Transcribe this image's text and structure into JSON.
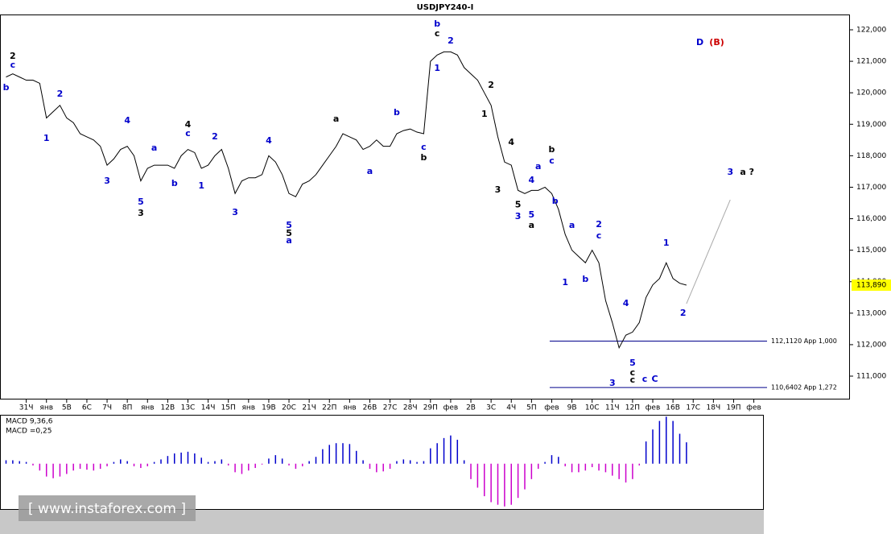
{
  "chart_data": [
    {
      "type": "line",
      "title": "USDJPY240-I",
      "color": "#000000",
      "categories": [
        null,
        null,
        null,
        "31Ч",
        null,
        null,
        "янв",
        null,
        null,
        "5В",
        null,
        null,
        "6С",
        null,
        null,
        "7Ч",
        null,
        null,
        "8П",
        null,
        null,
        "янв",
        null,
        null,
        "12В",
        null,
        null,
        "13С",
        null,
        null,
        "14Ч",
        null,
        null,
        "15П",
        null,
        null,
        "янв",
        null,
        null,
        "19В",
        null,
        null,
        "20С",
        null,
        null,
        "21Ч",
        null,
        null,
        "22П",
        null,
        null,
        "янв",
        null,
        null,
        "26В",
        null,
        null,
        "27С",
        null,
        null,
        "28Ч",
        null,
        null,
        "29П",
        null,
        null,
        "фев",
        null,
        null,
        "2В",
        null,
        null,
        "3С",
        null,
        null,
        "4Ч",
        null,
        null,
        "5П",
        null,
        null,
        "фев",
        null,
        null,
        "9В",
        null,
        null,
        "10С",
        null,
        null,
        "11Ч",
        null,
        null,
        "12П",
        null,
        null,
        "фев",
        null,
        null,
        "16В",
        null,
        null,
        "17С",
        null,
        null,
        "18Ч",
        null,
        null,
        "19П",
        null,
        null,
        "фев",
        null,
        null
      ],
      "values": [
        120.5,
        120.6,
        120.5,
        120.4,
        120.4,
        120.3,
        119.2,
        119.4,
        119.6,
        119.2,
        119.05,
        118.7,
        118.6,
        118.5,
        118.3,
        117.7,
        117.9,
        118.2,
        118.3,
        118.0,
        117.2,
        117.6,
        117.7,
        117.7,
        117.7,
        117.6,
        118.0,
        118.2,
        118.1,
        117.6,
        117.7,
        118.0,
        118.2,
        117.6,
        116.8,
        117.2,
        117.3,
        117.3,
        117.4,
        118.0,
        117.8,
        117.4,
        116.8,
        116.7,
        117.1,
        117.2,
        117.4,
        117.7,
        118.0,
        118.3,
        118.7,
        118.6,
        118.5,
        118.2,
        118.3,
        118.5,
        118.3,
        118.3,
        118.7,
        118.8,
        118.85,
        118.75,
        118.7,
        121.0,
        121.2,
        121.3,
        121.3,
        121.2,
        120.8,
        120.6,
        120.4,
        120.0,
        119.6,
        118.6,
        117.8,
        117.7,
        116.9,
        116.8,
        116.9,
        116.9,
        117.0,
        116.8,
        116.3,
        115.5,
        115.0,
        114.8,
        114.6,
        115.0,
        114.6,
        113.4,
        112.7,
        111.9,
        112.3,
        112.4,
        112.7,
        113.5,
        113.9,
        114.1,
        114.6,
        114.1,
        113.95,
        113.89,
        null,
        null,
        null,
        null,
        null,
        null,
        null,
        null,
        null,
        null,
        null,
        null
      ],
      "ylim": [
        110.284,
        122.486
      ],
      "yticks": [
        {
          "value": 111,
          "label": "111,000"
        },
        {
          "value": 112,
          "label": "112,000"
        },
        {
          "value": 113,
          "label": "113,000"
        },
        {
          "value": 114,
          "label": "114,000"
        },
        {
          "value": 115,
          "label": "115,000"
        },
        {
          "value": 116,
          "label": "116,000"
        },
        {
          "value": 117,
          "label": "117,000"
        },
        {
          "value": 118,
          "label": "118,000"
        },
        {
          "value": 119,
          "label": "119,000"
        },
        {
          "value": 120,
          "label": "120,000"
        },
        {
          "value": 121,
          "label": "121,000"
        },
        {
          "value": 122,
          "label": "122,000"
        }
      ],
      "last_price": {
        "value": 113.89,
        "label": "113,890"
      },
      "levels": [
        {
          "value": 112.112,
          "label": "112,1120 App 1,000"
        },
        {
          "value": 110.6402,
          "label": "110,6402 App 1,272"
        }
      ],
      "projection": {
        "x": [
          101,
          107.5
        ],
        "values": [
          113.3,
          116.6
        ]
      },
      "annotations": [
        {
          "text": "b",
          "x": 0,
          "y": 120.16,
          "color": "#0000cc"
        },
        {
          "text": "2",
          "x": 1,
          "y": 121.16,
          "color": "#000000"
        },
        {
          "text": "c",
          "x": 1,
          "y": 120.87,
          "color": "#0000cc"
        },
        {
          "text": "1",
          "x": 6,
          "y": 118.55,
          "color": "#0000cc"
        },
        {
          "text": "2",
          "x": 8,
          "y": 119.95,
          "color": "#0000cc"
        },
        {
          "text": "3",
          "x": 15,
          "y": 117.19,
          "color": "#0000cc"
        },
        {
          "text": "4",
          "x": 18,
          "y": 119.11,
          "color": "#0000cc"
        },
        {
          "text": "a",
          "x": 22,
          "y": 118.24,
          "color": "#0000cc"
        },
        {
          "text": "5",
          "x": 20,
          "y": 116.53,
          "color": "#0000cc"
        },
        {
          "text": "3",
          "x": 20,
          "y": 116.17,
          "color": "#000000"
        },
        {
          "text": "b",
          "x": 25,
          "y": 117.11,
          "color": "#0000cc"
        },
        {
          "text": "4",
          "x": 27,
          "y": 118.98,
          "color": "#000000"
        },
        {
          "text": "c",
          "x": 27,
          "y": 118.7,
          "color": "#0000cc"
        },
        {
          "text": "1",
          "x": 29,
          "y": 117.04,
          "color": "#0000cc"
        },
        {
          "text": "2",
          "x": 31,
          "y": 118.6,
          "color": "#0000cc"
        },
        {
          "text": "3",
          "x": 34,
          "y": 116.19,
          "color": "#0000cc"
        },
        {
          "text": "4",
          "x": 39,
          "y": 118.47,
          "color": "#0000cc"
        },
        {
          "text": "5",
          "x": 42,
          "y": 115.79,
          "color": "#0000cc"
        },
        {
          "text": "5",
          "x": 42,
          "y": 115.53,
          "color": "#000000"
        },
        {
          "text": "a",
          "x": 42,
          "y": 115.3,
          "color": "#0000cc"
        },
        {
          "text": "a",
          "x": 49,
          "y": 119.16,
          "color": "#000000"
        },
        {
          "text": "a",
          "x": 54,
          "y": 117.5,
          "color": "#0000cc"
        },
        {
          "text": "b",
          "x": 58,
          "y": 119.36,
          "color": "#0000cc"
        },
        {
          "text": "c",
          "x": 62,
          "y": 118.27,
          "color": "#0000cc"
        },
        {
          "text": "b",
          "x": 62,
          "y": 117.93,
          "color": "#000000"
        },
        {
          "text": "b",
          "x": 64,
          "y": 122.18,
          "color": "#0000cc"
        },
        {
          "text": "c",
          "x": 64,
          "y": 121.87,
          "color": "#000000"
        },
        {
          "text": "2",
          "x": 66,
          "y": 121.64,
          "color": "#0000cc"
        },
        {
          "text": "1",
          "x": 64,
          "y": 120.77,
          "color": "#0000cc"
        },
        {
          "text": "2",
          "x": 72,
          "y": 120.24,
          "color": "#000000"
        },
        {
          "text": "1",
          "x": 71,
          "y": 119.31,
          "color": "#000000"
        },
        {
          "text": "4",
          "x": 75,
          "y": 118.42,
          "color": "#000000"
        },
        {
          "text": "3",
          "x": 73,
          "y": 116.91,
          "color": "#000000"
        },
        {
          "text": "4",
          "x": 78,
          "y": 117.22,
          "color": "#0000cc"
        },
        {
          "text": "a",
          "x": 79,
          "y": 117.65,
          "color": "#0000cc"
        },
        {
          "text": "5",
          "x": 76,
          "y": 116.43,
          "color": "#000000"
        },
        {
          "text": "3",
          "x": 76,
          "y": 116.07,
          "color": "#0000cc"
        },
        {
          "text": "5",
          "x": 78,
          "y": 116.12,
          "color": "#0000cc"
        },
        {
          "text": "a",
          "x": 78,
          "y": 115.79,
          "color": "#000000"
        },
        {
          "text": "b",
          "x": 81,
          "y": 118.19,
          "color": "#000000"
        },
        {
          "text": "c",
          "x": 81,
          "y": 117.83,
          "color": "#0000cc"
        },
        {
          "text": "b",
          "x": 81.5,
          "y": 116.55,
          "color": "#0000cc"
        },
        {
          "text": "a",
          "x": 84,
          "y": 115.79,
          "color": "#0000cc"
        },
        {
          "text": "2",
          "x": 88,
          "y": 115.81,
          "color": "#0000cc"
        },
        {
          "text": "c",
          "x": 88,
          "y": 115.45,
          "color": "#0000cc"
        },
        {
          "text": "1",
          "x": 83,
          "y": 113.97,
          "color": "#0000cc"
        },
        {
          "text": "b",
          "x": 86,
          "y": 114.07,
          "color": "#0000cc"
        },
        {
          "text": "4",
          "x": 92,
          "y": 113.3,
          "color": "#0000cc"
        },
        {
          "text": "5",
          "x": 93,
          "y": 111.41,
          "color": "#0000cc"
        },
        {
          "text": "c",
          "x": 93,
          "y": 111.1,
          "color": "#000000"
        },
        {
          "text": "c",
          "x": 93,
          "y": 110.87,
          "color": "#000000"
        },
        {
          "text": "3",
          "x": 90,
          "y": 110.77,
          "color": "#0000cc"
        },
        {
          "text": "c",
          "x": 94.8,
          "y": 110.9,
          "color": "#0000cc"
        },
        {
          "text": "C",
          "x": 96.3,
          "y": 110.9,
          "color": "#0000cc"
        },
        {
          "text": "1",
          "x": 98,
          "y": 115.22,
          "color": "#0000cc"
        },
        {
          "text": "2",
          "x": 100.5,
          "y": 113.0,
          "color": "#0000cc"
        },
        {
          "text": "3",
          "x": 107.5,
          "y": 117.47,
          "color": "#0000cc"
        },
        {
          "text": "a ?",
          "x": 110,
          "y": 117.47,
          "color": "#000000"
        },
        {
          "text": "D",
          "x": 103,
          "y": 121.59,
          "color": "#0000cc"
        },
        {
          "text": "(B)",
          "x": 105.5,
          "y": 121.59,
          "color": "#cc0000"
        }
      ]
    },
    {
      "type": "histogram",
      "title": "MACD 9,36,6",
      "subtitle": "MACD =0,25",
      "colors": {
        "positive": "#0000cc",
        "negative": "#cc00cc"
      },
      "values": [
        0.04,
        0.04,
        0.03,
        0.02,
        -0.02,
        -0.08,
        -0.15,
        -0.17,
        -0.15,
        -0.12,
        -0.08,
        -0.06,
        -0.07,
        -0.08,
        -0.06,
        -0.03,
        0.02,
        0.05,
        0.03,
        -0.03,
        -0.05,
        -0.03,
        0.02,
        0.05,
        0.09,
        0.12,
        0.13,
        0.14,
        0.12,
        0.07,
        0.02,
        0.03,
        0.05,
        -0.02,
        -0.1,
        -0.12,
        -0.08,
        -0.05,
        -0.01,
        0.06,
        0.1,
        0.06,
        -0.02,
        -0.06,
        -0.03,
        0.03,
        0.08,
        0.17,
        0.22,
        0.24,
        0.24,
        0.23,
        0.15,
        0.04,
        -0.06,
        -0.1,
        -0.09,
        -0.06,
        0.03,
        0.05,
        0.04,
        0.02,
        0.03,
        0.18,
        0.24,
        0.3,
        0.33,
        0.28,
        0.04,
        -0.18,
        -0.28,
        -0.38,
        -0.45,
        -0.48,
        -0.5,
        -0.48,
        -0.4,
        -0.3,
        -0.18,
        -0.06,
        0.02,
        0.1,
        0.08,
        -0.03,
        -0.1,
        -0.1,
        -0.08,
        -0.04,
        -0.08,
        -0.1,
        -0.14,
        -0.18,
        -0.22,
        -0.18,
        -0.02,
        0.26,
        0.4,
        0.5,
        0.55,
        0.5,
        0.35,
        0.25,
        null,
        null,
        null,
        null,
        null,
        null,
        null,
        null,
        null,
        null,
        null,
        null
      ],
      "ylim": [
        -0.53,
        0.6
      ]
    }
  ],
  "watermark": "[ www.instaforex.com ]"
}
